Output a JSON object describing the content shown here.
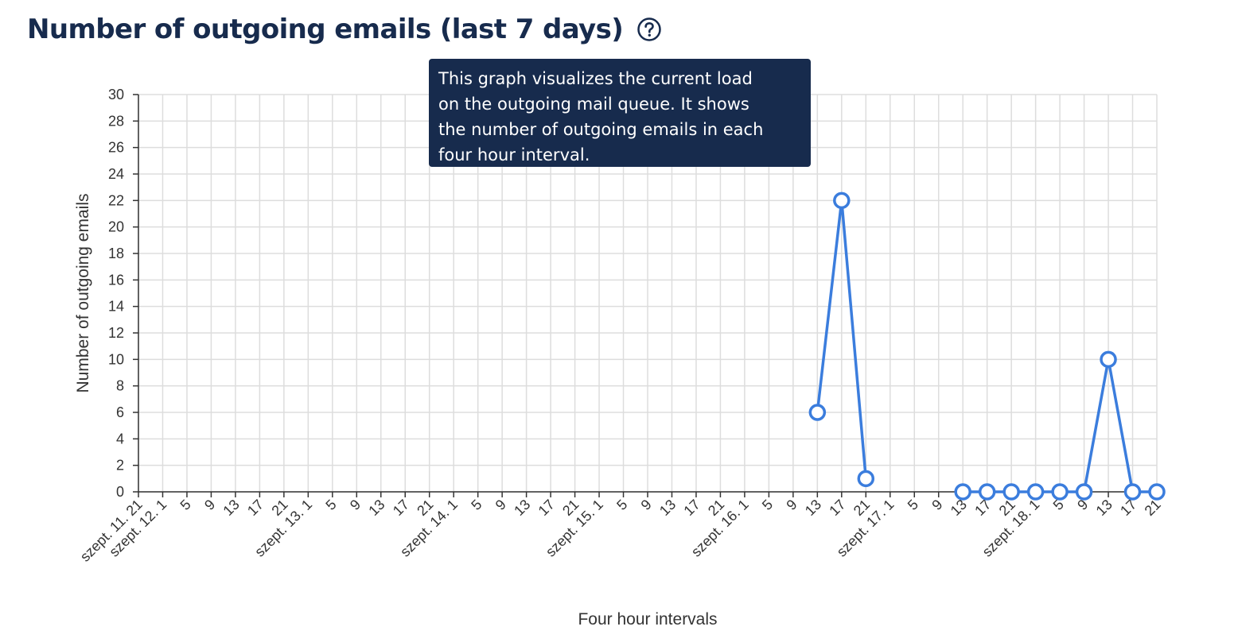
{
  "header": {
    "title": "Number of outgoing emails (last 7 days)",
    "help_icon": "question-circle-icon"
  },
  "tooltip": {
    "lines": [
      "This graph visualizes the current load",
      "on the outgoing mail queue. It shows",
      "the number of outgoing emails in each",
      "four hour interval."
    ]
  },
  "colors": {
    "title": "#172b4d",
    "tooltip_bg": "#172b4d",
    "series": "#3b7ddd",
    "grid": "#dddddd",
    "axis": "#333333"
  },
  "chart_data": {
    "type": "line",
    "xlabel": "Four hour intervals",
    "ylabel": "Number of outgoing emails",
    "ylim": [
      0,
      30
    ],
    "yticks": [
      0,
      2,
      4,
      6,
      8,
      10,
      12,
      14,
      16,
      18,
      20,
      22,
      24,
      26,
      28,
      30
    ],
    "grid": true,
    "x": [
      "szept. 11. 21",
      "szept. 12. 1",
      "5",
      "9",
      "13",
      "17",
      "21",
      "szept. 13. 1",
      "5",
      "9",
      "13",
      "17",
      "21",
      "szept. 14. 1",
      "5",
      "9",
      "13",
      "17",
      "21",
      "szept. 15. 1",
      "5",
      "9",
      "13",
      "17",
      "21",
      "szept. 16. 1",
      "5",
      "9",
      "13",
      "17",
      "21",
      "szept. 17. 1",
      "5",
      "9",
      "13",
      "17",
      "21",
      "szept. 18. 1",
      "5",
      "9",
      "13",
      "17",
      "21"
    ],
    "series": [
      {
        "values": [
          null,
          null,
          null,
          null,
          null,
          null,
          null,
          null,
          null,
          null,
          null,
          null,
          null,
          null,
          null,
          null,
          null,
          null,
          null,
          null,
          null,
          null,
          null,
          null,
          null,
          null,
          null,
          null,
          6,
          22,
          1,
          null,
          null,
          null,
          0,
          0,
          0,
          0,
          0,
          0,
          10,
          0,
          0
        ]
      }
    ]
  }
}
